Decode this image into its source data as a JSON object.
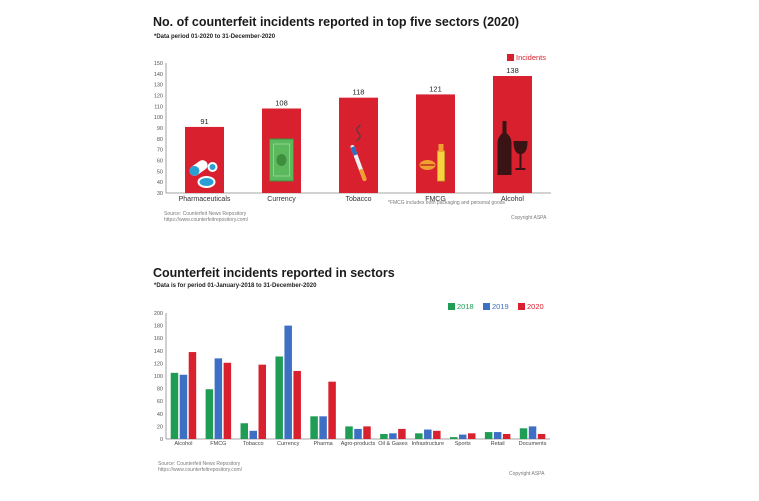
{
  "colors": {
    "red": "#d8202f",
    "green": "#1f9d55",
    "blue": "#3d6fc4",
    "axis": "#666666",
    "grid": "#eeeeee"
  },
  "chart_data": [
    {
      "type": "bar",
      "title": "No. of counterfeit incidents reported in top five sectors (2020)",
      "subtitle": "*Data period 01-2020 to 31-December-2020",
      "categories": [
        "Pharmaceuticals",
        "Currency",
        "Tobacco",
        "FMCG",
        "Alcohol"
      ],
      "icons": [
        "pill-icon",
        "banknote-icon",
        "cigarette-icon",
        "lipstick-icon",
        "wine-bottle-icon"
      ],
      "series": [
        {
          "name": "Incidents",
          "values": [
            91,
            108,
            118,
            121,
            138
          ],
          "color": "#d8202f"
        }
      ],
      "ylim": [
        30,
        150
      ],
      "yticks": [
        30,
        40,
        50,
        60,
        70,
        80,
        90,
        100,
        110,
        120,
        130,
        140,
        150
      ],
      "legend_position": "top-right",
      "note": "*FMCG includes both packaging and personal goods",
      "source": "Source: Counterfeit News Repository",
      "source_url": "https://www.counterfeitrepository.com/",
      "copyright": "Copyright ASPA"
    },
    {
      "type": "bar",
      "title": "Counterfeit incidents reported in sectors",
      "subtitle": "*Data is for period 01-January-2018 to 31-December-2020",
      "categories": [
        "Alcohol",
        "FMCG",
        "Tobacco",
        "Currency",
        "Pharma",
        "Agro-products",
        "Oil & Gases",
        "Infrastructure",
        "Sports",
        "Retail",
        "Documents"
      ],
      "series": [
        {
          "name": "2018",
          "color": "#1f9d55",
          "values": [
            105,
            79,
            25,
            131,
            36,
            20,
            8,
            9,
            3,
            11,
            17
          ]
        },
        {
          "name": "2019",
          "color": "#3d6fc4",
          "values": [
            102,
            128,
            13,
            180,
            36,
            16,
            9,
            15,
            7,
            11,
            20
          ]
        },
        {
          "name": "2020",
          "color": "#d8202f",
          "values": [
            138,
            121,
            118,
            108,
            91,
            20,
            16,
            13,
            9,
            8,
            8
          ]
        }
      ],
      "ylim": [
        0,
        200
      ],
      "yticks": [
        0,
        20,
        40,
        60,
        80,
        100,
        120,
        140,
        160,
        180,
        200
      ],
      "legend_position": "top-right",
      "source": "Source: Counterfeit News Repository",
      "source_url": "https://www.counterfeitrepository.com/",
      "copyright": "Copyright ASPA"
    }
  ]
}
